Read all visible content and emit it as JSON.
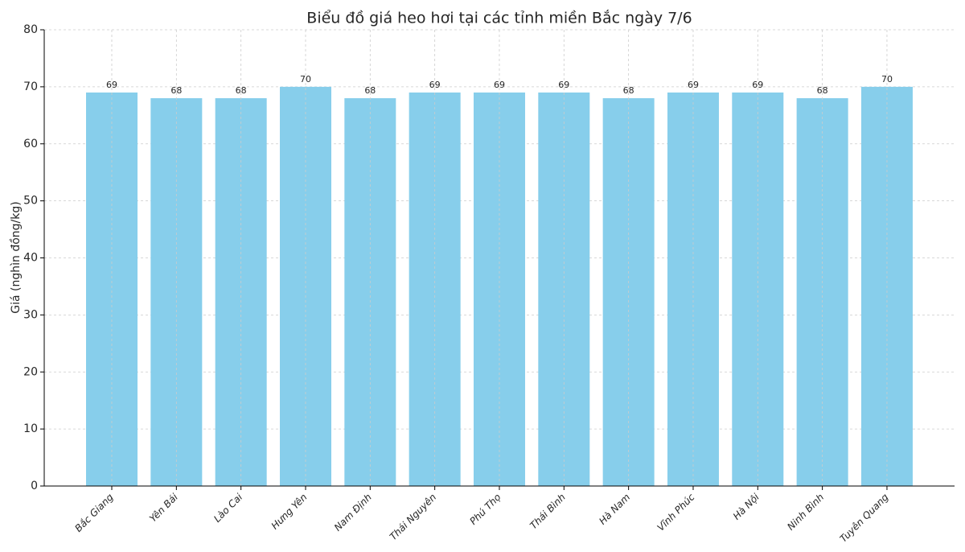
{
  "chart_data": {
    "type": "bar",
    "title": "Biểu đồ giá heo hơi tại các tỉnh miền Bắc ngày 7/6",
    "y_label": "Giá (nghìn đồng/kg)",
    "categories": [
      "Bắc Giang",
      "Yên Bái",
      "Lào Cai",
      "Hưng Yên",
      "Nam Định",
      "Thái Nguyên",
      "Phú Thọ",
      "Thái Bình",
      "Hà Nam",
      "Vĩnh Phúc",
      "Hà Nội",
      "Ninh Bình",
      "Tuyên Quang"
    ],
    "values": [
      69,
      68,
      68,
      70,
      68,
      69,
      69,
      69,
      68,
      69,
      69,
      68,
      70
    ],
    "color": "#87ceeb",
    "ylim": [
      0,
      80
    ],
    "yticks": [
      0,
      10,
      20,
      30,
      40,
      50,
      60,
      70,
      80
    ],
    "grid": true
  }
}
